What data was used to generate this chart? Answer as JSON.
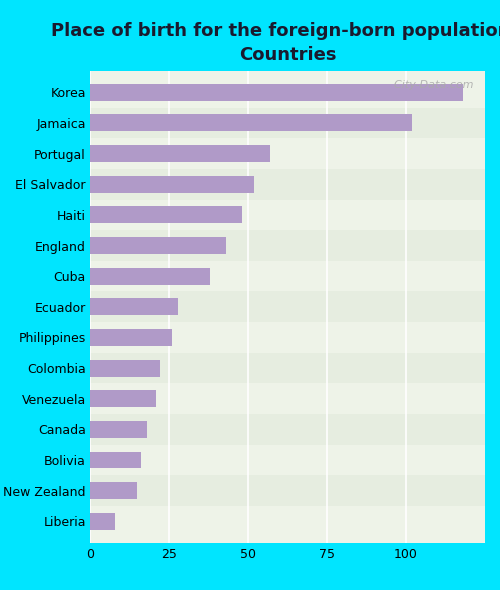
{
  "title": "Place of birth for the foreign-born population -\nCountries",
  "categories": [
    "Korea",
    "Jamaica",
    "Portugal",
    "El Salvador",
    "Haiti",
    "England",
    "Cuba",
    "Ecuador",
    "Philippines",
    "Colombia",
    "Venezuela",
    "Canada",
    "Bolivia",
    "New Zealand",
    "Liberia"
  ],
  "values": [
    118,
    102,
    57,
    52,
    48,
    43,
    38,
    28,
    26,
    22,
    21,
    18,
    16,
    15,
    8
  ],
  "bar_color": "#b09ac8",
  "bg_color": "#00e5ff",
  "plot_bg": "#eef3e8",
  "xlabel": "",
  "ylabel": "",
  "xlim": [
    0,
    125
  ],
  "xticks": [
    0,
    25,
    50,
    75,
    100
  ],
  "title_fontsize": 13,
  "tick_fontsize": 9,
  "watermark": "  City-Data.com"
}
